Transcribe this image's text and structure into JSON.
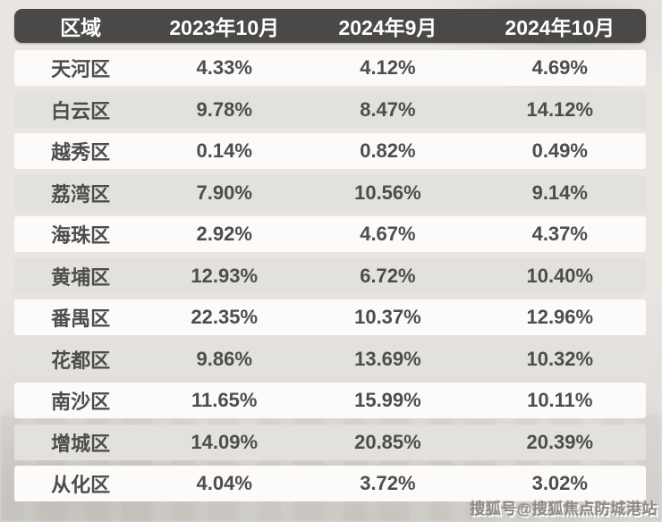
{
  "table": {
    "headers": [
      "区域",
      "2023年10月",
      "2024年9月",
      "2024年10月"
    ],
    "rows": [
      {
        "district": "天河区",
        "values": [
          "4.33%",
          "4.12%",
          "4.69%"
        ]
      },
      {
        "district": "白云区",
        "values": [
          "9.78%",
          "8.47%",
          "14.12%"
        ]
      },
      {
        "district": "越秀区",
        "values": [
          "0.14%",
          "0.82%",
          "0.49%"
        ]
      },
      {
        "district": "荔湾区",
        "values": [
          "7.90%",
          "10.56%",
          "9.14%"
        ]
      },
      {
        "district": "海珠区",
        "values": [
          "2.92%",
          "4.67%",
          "4.37%"
        ]
      },
      {
        "district": "黄埔区",
        "values": [
          "12.93%",
          "6.72%",
          "10.40%"
        ]
      },
      {
        "district": "番禺区",
        "values": [
          "22.35%",
          "10.37%",
          "12.96%"
        ]
      },
      {
        "district": "花都区",
        "values": [
          "9.86%",
          "13.69%",
          "10.32%"
        ]
      },
      {
        "district": "南沙区",
        "values": [
          "11.65%",
          "15.99%",
          "10.11%"
        ]
      },
      {
        "district": "增城区",
        "values": [
          "14.09%",
          "20.85%",
          "20.39%"
        ]
      },
      {
        "district": "从化区",
        "values": [
          "4.04%",
          "3.72%",
          "3.02%"
        ]
      }
    ]
  },
  "watermark": {
    "text": "搜狐号@搜狐焦点防城港站"
  },
  "colors": {
    "header_bg": "#4a4947",
    "header_text": "#ffffff",
    "row_white": "#fcfbfa",
    "row_gray": "#e3e1de",
    "body_text": "#4f4d4b",
    "page_bg": "#e9e6e2",
    "watermark_text": "#8f8b87"
  },
  "chart_data": {
    "type": "table",
    "title": "",
    "unit": "%",
    "categories": [
      "天河区",
      "白云区",
      "越秀区",
      "荔湾区",
      "海珠区",
      "黄埔区",
      "番禺区",
      "花都区",
      "南沙区",
      "增城区",
      "从化区"
    ],
    "column_header": "区域",
    "series": [
      {
        "name": "2023年10月",
        "values": [
          4.33,
          9.78,
          0.14,
          7.9,
          2.92,
          12.93,
          22.35,
          9.86,
          11.65,
          14.09,
          4.04
        ]
      },
      {
        "name": "2024年9月",
        "values": [
          4.12,
          8.47,
          0.82,
          10.56,
          4.67,
          6.72,
          10.37,
          13.69,
          15.99,
          20.85,
          3.72
        ]
      },
      {
        "name": "2024年10月",
        "values": [
          4.69,
          14.12,
          0.49,
          9.14,
          4.37,
          10.4,
          12.96,
          10.32,
          10.11,
          20.39,
          3.02
        ]
      }
    ],
    "legend_position": "header-row",
    "grid": false
  }
}
